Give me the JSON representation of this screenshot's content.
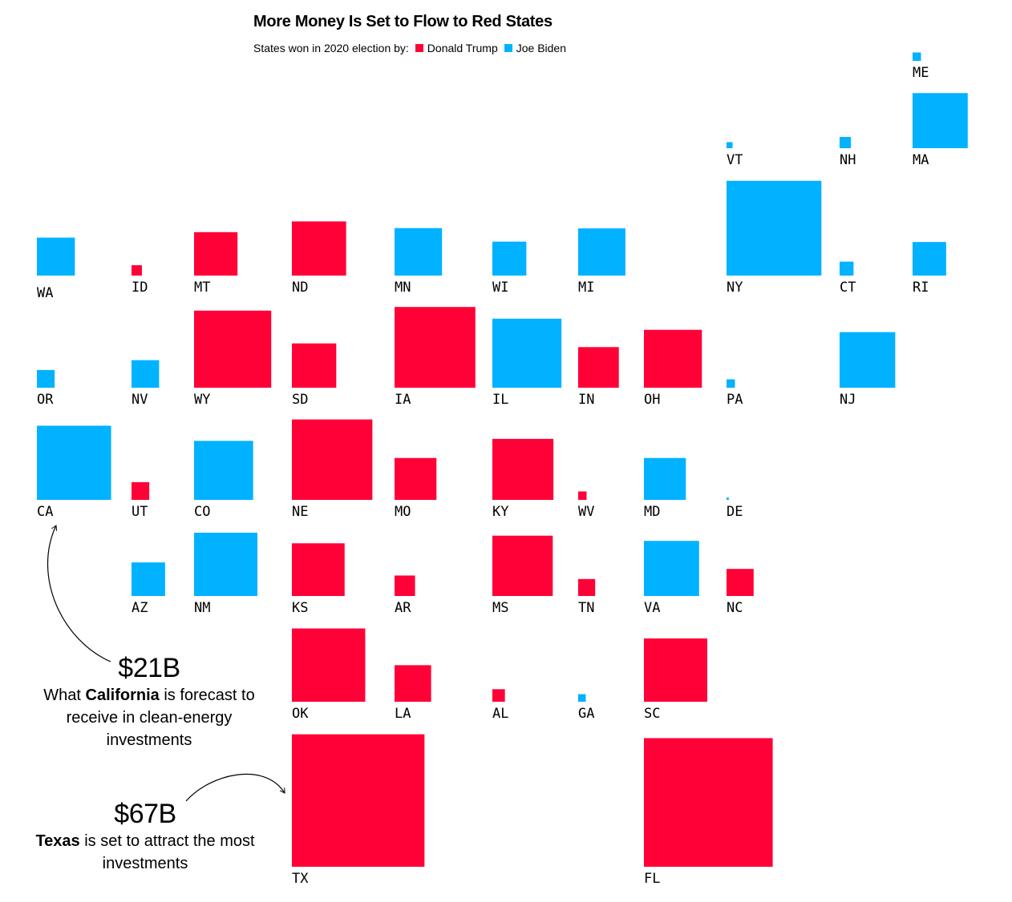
{
  "title": "More Money Is Set to Flow to Red States",
  "legend": {
    "prefix": "States won in 2020 election by:",
    "items": [
      {
        "label": "Donald Trump",
        "color": "#ff0037"
      },
      {
        "label": "Joe Biden",
        "color": "#00b2ff"
      }
    ]
  },
  "annotations": {
    "california": {
      "value": "$21B",
      "text_before": "What ",
      "text_bold": "California",
      "text_after": " is forecast to receive in clean-energy investments"
    },
    "texas": {
      "value": "$67B",
      "text_bold": "Texas",
      "text_after": " is set to attract the most investments"
    }
  },
  "chart_data": {
    "type": "tile-map",
    "value_unit": "$B (square area proportional to forecast clean-energy investment)",
    "grid": {
      "rows": 8,
      "cols": 11
    },
    "parties": {
      "R": {
        "name": "Donald Trump",
        "color": "#ff0037"
      },
      "D": {
        "name": "Joe Biden",
        "color": "#00b2ff"
      }
    },
    "states": [
      {
        "abbr": "ME",
        "row": 0,
        "col": 10,
        "party": "D",
        "value": 0.27
      },
      {
        "abbr": "VT",
        "row": 1,
        "col": 8,
        "party": "D",
        "value": 0.14
      },
      {
        "abbr": "NH",
        "row": 1,
        "col": 9,
        "party": "D",
        "value": 0.48
      },
      {
        "abbr": "MA",
        "row": 1,
        "col": 10,
        "party": "D",
        "value": 11.6
      },
      {
        "abbr": "WA",
        "row": 2,
        "col": 0,
        "party": "D",
        "value": 5.5
      },
      {
        "abbr": "ID",
        "row": 2,
        "col": 1,
        "party": "R",
        "value": 0.41
      },
      {
        "abbr": "MT",
        "row": 2,
        "col": 2,
        "party": "R",
        "value": 7.2
      },
      {
        "abbr": "ND",
        "row": 2,
        "col": 3,
        "party": "R",
        "value": 11.2
      },
      {
        "abbr": "MN",
        "row": 2,
        "col": 4,
        "party": "D",
        "value": 8.6
      },
      {
        "abbr": "WI",
        "row": 2,
        "col": 5,
        "party": "D",
        "value": 4.4
      },
      {
        "abbr": "MI",
        "row": 2,
        "col": 6,
        "party": "D",
        "value": 8.5
      },
      {
        "abbr": "NY",
        "row": 2,
        "col": 8,
        "party": "D",
        "value": 34.3
      },
      {
        "abbr": "CT",
        "row": 2,
        "col": 9,
        "party": "D",
        "value": 0.74
      },
      {
        "abbr": "RI",
        "row": 2,
        "col": 10,
        "party": "D",
        "value": 4.3
      },
      {
        "abbr": "OR",
        "row": 3,
        "col": 0,
        "party": "D",
        "value": 1.2
      },
      {
        "abbr": "NV",
        "row": 3,
        "col": 1,
        "party": "D",
        "value": 2.9
      },
      {
        "abbr": "WY",
        "row": 3,
        "col": 2,
        "party": "R",
        "value": 22.7
      },
      {
        "abbr": "SD",
        "row": 3,
        "col": 3,
        "party": "R",
        "value": 7.5
      },
      {
        "abbr": "IA",
        "row": 3,
        "col": 4,
        "party": "R",
        "value": 24.9
      },
      {
        "abbr": "IL",
        "row": 3,
        "col": 5,
        "party": "D",
        "value": 18.2
      },
      {
        "abbr": "IN",
        "row": 3,
        "col": 6,
        "party": "R",
        "value": 6.3
      },
      {
        "abbr": "OH",
        "row": 3,
        "col": 7,
        "party": "R",
        "value": 12.8
      },
      {
        "abbr": "PA",
        "row": 3,
        "col": 8,
        "party": "D",
        "value": 0.27
      },
      {
        "abbr": "NJ",
        "row": 3,
        "col": 9,
        "party": "D",
        "value": 11.8
      },
      {
        "abbr": "CA",
        "row": 4,
        "col": 0,
        "party": "D",
        "value": 21
      },
      {
        "abbr": "UT",
        "row": 4,
        "col": 1,
        "party": "R",
        "value": 1.2
      },
      {
        "abbr": "CO",
        "row": 4,
        "col": 2,
        "party": "D",
        "value": 13.3
      },
      {
        "abbr": "NE",
        "row": 4,
        "col": 3,
        "party": "R",
        "value": 24.7
      },
      {
        "abbr": "MO",
        "row": 4,
        "col": 4,
        "party": "R",
        "value": 6.7
      },
      {
        "abbr": "KY",
        "row": 4,
        "col": 5,
        "party": "R",
        "value": 14.2
      },
      {
        "abbr": "WV",
        "row": 4,
        "col": 6,
        "party": "R",
        "value": 0.27
      },
      {
        "abbr": "MD",
        "row": 4,
        "col": 7,
        "party": "D",
        "value": 6.7
      },
      {
        "abbr": "DE",
        "row": 4,
        "col": 8,
        "party": "D",
        "value": 0.02
      },
      {
        "abbr": "AZ",
        "row": 5,
        "col": 1,
        "party": "D",
        "value": 4.3
      },
      {
        "abbr": "NM",
        "row": 5,
        "col": 2,
        "party": "D",
        "value": 15.3
      },
      {
        "abbr": "KS",
        "row": 5,
        "col": 3,
        "party": "R",
        "value": 10.6
      },
      {
        "abbr": "AR",
        "row": 5,
        "col": 4,
        "party": "R",
        "value": 1.6
      },
      {
        "abbr": "MS",
        "row": 5,
        "col": 5,
        "party": "R",
        "value": 13.9
      },
      {
        "abbr": "TN",
        "row": 5,
        "col": 6,
        "party": "R",
        "value": 1.1
      },
      {
        "abbr": "VA",
        "row": 5,
        "col": 7,
        "party": "D",
        "value": 11.6
      },
      {
        "abbr": "NC",
        "row": 5,
        "col": 8,
        "party": "R",
        "value": 2.8
      },
      {
        "abbr": "OK",
        "row": 6,
        "col": 3,
        "party": "R",
        "value": 20.5
      },
      {
        "abbr": "LA",
        "row": 6,
        "col": 4,
        "party": "R",
        "value": 5.1
      },
      {
        "abbr": "AL",
        "row": 6,
        "col": 5,
        "party": "R",
        "value": 0.6
      },
      {
        "abbr": "GA",
        "row": 6,
        "col": 6,
        "party": "D",
        "value": 0.22
      },
      {
        "abbr": "SC",
        "row": 6,
        "col": 7,
        "party": "R",
        "value": 15.3
      },
      {
        "abbr": "TX",
        "row": 7,
        "col": 3,
        "party": "R",
        "value": 67
      },
      {
        "abbr": "FL",
        "row": 7,
        "col": 7,
        "party": "R",
        "value": 63.2
      }
    ]
  }
}
